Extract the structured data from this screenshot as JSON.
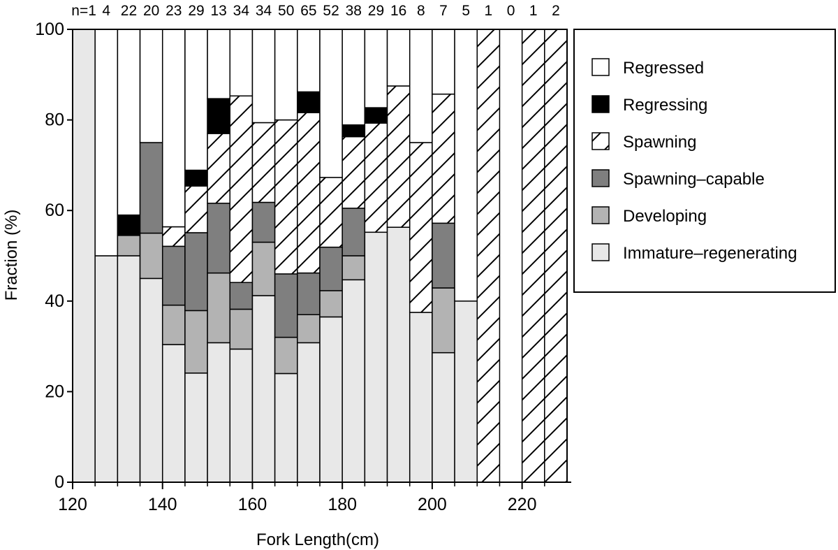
{
  "chart_data": {
    "type": "bar",
    "stacked": true,
    "xlabel": "Fork Length(cm)",
    "ylabel": "Fraction (%)",
    "xlim": [
      120,
      230
    ],
    "ylim": [
      0,
      100
    ],
    "x_ticks": [
      120,
      140,
      160,
      180,
      200,
      220
    ],
    "y_ticks": [
      0,
      20,
      40,
      60,
      80,
      100
    ],
    "bin_width": 5,
    "legend_position": "right",
    "n_prefix": "n=",
    "series": [
      {
        "name": "Immature–regenerating",
        "fill": "#e8e8e8",
        "pattern": "none"
      },
      {
        "name": "Developing",
        "fill": "#b3b3b3",
        "pattern": "none"
      },
      {
        "name": "Spawning–capable",
        "fill": "#7f7f7f",
        "pattern": "none"
      },
      {
        "name": "Spawning",
        "fill": "#ffffff",
        "pattern": "hatch"
      },
      {
        "name": "Regressing",
        "fill": "#000000",
        "pattern": "none"
      },
      {
        "name": "Regressed",
        "fill": "#ffffff",
        "pattern": "none"
      }
    ],
    "legend_order": [
      5,
      4,
      3,
      2,
      1,
      0
    ],
    "bins": [
      {
        "start": 120,
        "n": 1,
        "values": [
          100,
          0,
          0,
          0,
          0,
          0
        ]
      },
      {
        "start": 125,
        "n": 4,
        "values": [
          50,
          0,
          0,
          0,
          0,
          50
        ]
      },
      {
        "start": 130,
        "n": 22,
        "values": [
          50,
          4.5,
          0,
          0,
          4.5,
          41
        ]
      },
      {
        "start": 135,
        "n": 20,
        "values": [
          45,
          10,
          20,
          0,
          0,
          25
        ]
      },
      {
        "start": 140,
        "n": 23,
        "values": [
          30.4,
          8.7,
          13,
          4.3,
          0,
          43.6
        ]
      },
      {
        "start": 145,
        "n": 29,
        "values": [
          24.1,
          13.8,
          17.2,
          10.3,
          3.5,
          31.1
        ]
      },
      {
        "start": 150,
        "n": 13,
        "values": [
          30.8,
          15.4,
          15.4,
          15.4,
          7.7,
          15.3
        ]
      },
      {
        "start": 155,
        "n": 34,
        "values": [
          29.4,
          8.8,
          5.9,
          41.2,
          0,
          14.7
        ]
      },
      {
        "start": 160,
        "n": 34,
        "values": [
          41.2,
          11.8,
          8.8,
          17.6,
          0,
          20.6
        ]
      },
      {
        "start": 165,
        "n": 50,
        "values": [
          24,
          8,
          14,
          34,
          0,
          20
        ]
      },
      {
        "start": 170,
        "n": 65,
        "values": [
          30.8,
          6.2,
          9.2,
          35.4,
          4.6,
          13.8
        ]
      },
      {
        "start": 175,
        "n": 52,
        "values": [
          36.5,
          5.8,
          9.6,
          15.4,
          0,
          32.7
        ]
      },
      {
        "start": 180,
        "n": 38,
        "values": [
          44.7,
          5.3,
          10.5,
          15.8,
          2.6,
          21.1
        ]
      },
      {
        "start": 185,
        "n": 29,
        "values": [
          55.2,
          0,
          0,
          24.1,
          3.4,
          17.3
        ]
      },
      {
        "start": 190,
        "n": 16,
        "values": [
          56.3,
          0,
          0,
          31.2,
          0,
          12.5
        ]
      },
      {
        "start": 195,
        "n": 8,
        "values": [
          37.5,
          0,
          0,
          37.5,
          0,
          25
        ]
      },
      {
        "start": 200,
        "n": 7,
        "values": [
          28.6,
          14.3,
          14.3,
          28.5,
          0,
          14.3
        ]
      },
      {
        "start": 205,
        "n": 5,
        "values": [
          40,
          0,
          0,
          0,
          0,
          60
        ]
      },
      {
        "start": 210,
        "n": 1,
        "values": [
          0,
          0,
          0,
          100,
          0,
          0
        ]
      },
      {
        "start": 215,
        "n": 0,
        "values": [
          0,
          0,
          0,
          0,
          0,
          0
        ]
      },
      {
        "start": 220,
        "n": 1,
        "values": [
          0,
          0,
          0,
          100,
          0,
          0
        ]
      },
      {
        "start": 225,
        "n": 2,
        "values": [
          0,
          0,
          0,
          100,
          0,
          0
        ]
      }
    ]
  }
}
